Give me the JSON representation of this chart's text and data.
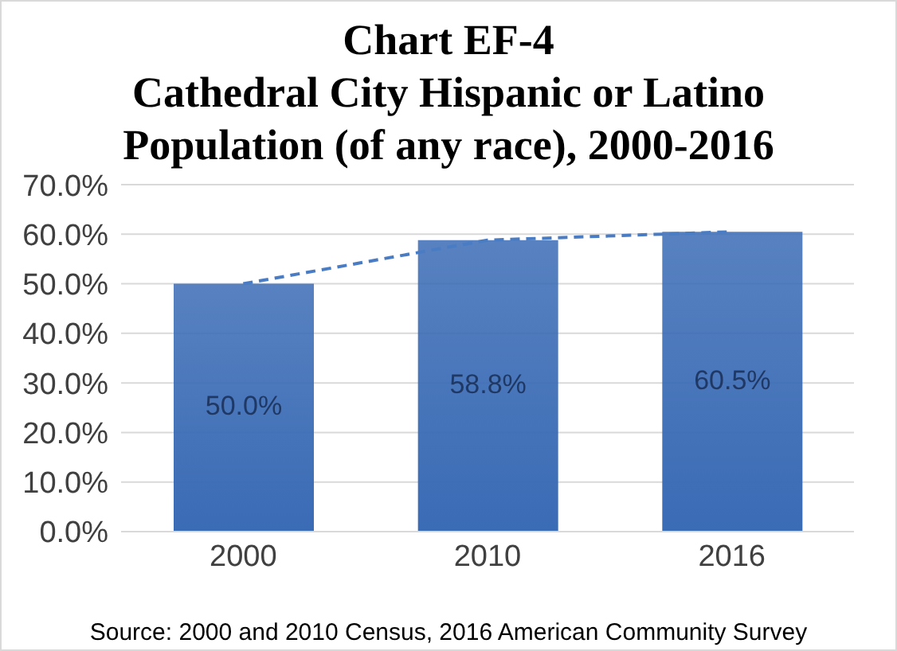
{
  "chart_data": {
    "type": "bar",
    "title": "Chart EF-4\nCathedral City Hispanic or Latino\nPopulation (of any race), 2000-2016",
    "categories": [
      "2000",
      "2010",
      "2016"
    ],
    "series": [
      {
        "color": "#3a6bb5",
        "values": [
          50.0,
          58.8,
          60.5
        ],
        "value_labels": [
          "50.0%",
          "58.8%",
          "60.5%"
        ]
      },
      {
        "type": "line",
        "color": "#4a7cc4",
        "values": [
          50.0,
          58.8,
          60.5
        ],
        "line_style": "dashed",
        "marker": "none"
      }
    ],
    "ylim": [
      0,
      70
    ],
    "yticks": [
      {
        "value": 0,
        "label": "0.0%"
      },
      {
        "value": 10,
        "label": "10.0%"
      },
      {
        "value": 20,
        "label": "20.0%"
      },
      {
        "value": 30,
        "label": "30.0%"
      },
      {
        "value": 40,
        "label": "40.0%"
      },
      {
        "value": 50,
        "label": "50.0%"
      },
      {
        "value": 60,
        "label": "60.0%"
      },
      {
        "value": 70,
        "label": "70.0%"
      }
    ],
    "grid": "y",
    "legend": false,
    "annotations": [
      "Source: 2000 and 2010 Census, 2016 American Community Survey"
    ]
  }
}
